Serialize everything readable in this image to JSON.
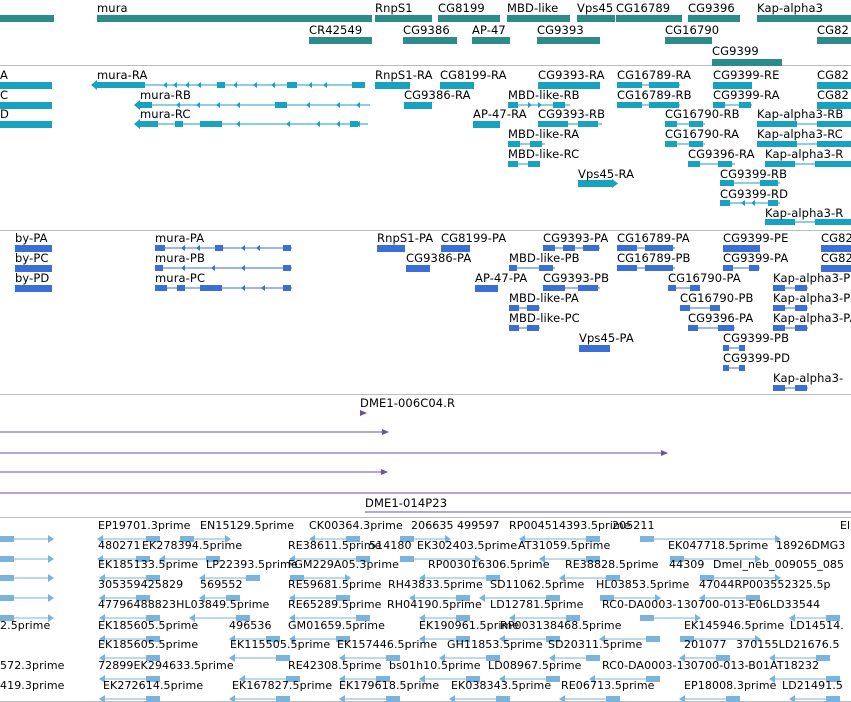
{
  "colors": {
    "gene": "#2e8b8b",
    "transcript": "#17a2c0",
    "cds": "#3a6fd6",
    "clone": "#6b4fa8",
    "est": "#7ab4dc",
    "separator": "#bcbcbc"
  },
  "tracks": [
    {
      "id": "genes",
      "labels": [
        {
          "text": "mura"
        },
        {
          "text": "RnpS1"
        },
        {
          "text": "CG8199"
        },
        {
          "text": "MBD-like"
        },
        {
          "text": "Vps45"
        },
        {
          "text": "CG16789"
        },
        {
          "text": "CG9396"
        },
        {
          "text": "Kap-alpha3"
        },
        {
          "text": "CR42549"
        },
        {
          "text": "CG9386"
        },
        {
          "text": "AP-47"
        },
        {
          "text": "CG9393"
        },
        {
          "text": "CG16790"
        },
        {
          "text": "CG82"
        },
        {
          "text": "CG9399"
        }
      ]
    },
    {
      "id": "transcripts",
      "labels": [
        {
          "text": "A"
        },
        {
          "text": "C"
        },
        {
          "text": "D"
        },
        {
          "text": "mura-RA"
        },
        {
          "text": "mura-RB"
        },
        {
          "text": "mura-RC"
        },
        {
          "text": "RnpS1-RA"
        },
        {
          "text": "CG8199-RA"
        },
        {
          "text": "CG9386-RA"
        },
        {
          "text": "AP-47-RA"
        },
        {
          "text": "MBD-like-RB"
        },
        {
          "text": "MBD-like-RA"
        },
        {
          "text": "MBD-like-RC"
        },
        {
          "text": "CG9393-RA"
        },
        {
          "text": "CG9393-RB"
        },
        {
          "text": "Vps45-RA"
        },
        {
          "text": "CG16789-RA"
        },
        {
          "text": "CG16789-RB"
        },
        {
          "text": "CG16790-RB"
        },
        {
          "text": "CG16790-RA"
        },
        {
          "text": "CG9396-RA"
        },
        {
          "text": "CG9399-RE"
        },
        {
          "text": "CG9399-RA"
        },
        {
          "text": "CG9399-RB"
        },
        {
          "text": "CG9399-RD"
        },
        {
          "text": "Kap-alpha3-RB"
        },
        {
          "text": "Kap-alpha3-RC"
        },
        {
          "text": "Kap-alpha3-R"
        },
        {
          "text": "Kap-alpha3-R"
        },
        {
          "text": "CG82"
        },
        {
          "text": "CG82"
        }
      ]
    },
    {
      "id": "proteins",
      "labels": [
        {
          "text": "by-PA"
        },
        {
          "text": "by-PC"
        },
        {
          "text": "by-PD"
        },
        {
          "text": "mura-PA"
        },
        {
          "text": "mura-PB"
        },
        {
          "text": "mura-PC"
        },
        {
          "text": "RnpS1-PA"
        },
        {
          "text": "CG8199-PA"
        },
        {
          "text": "CG9386-PA"
        },
        {
          "text": "AP-47-PA"
        },
        {
          "text": "MBD-like-PB"
        },
        {
          "text": "MBD-like-PA"
        },
        {
          "text": "MBD-like-PC"
        },
        {
          "text": "CG9393-PA"
        },
        {
          "text": "CG9393-PB"
        },
        {
          "text": "Vps45-PA"
        },
        {
          "text": "CG16789-PA"
        },
        {
          "text": "CG16789-PB"
        },
        {
          "text": "CG16790-PA"
        },
        {
          "text": "CG16790-PB"
        },
        {
          "text": "CG9396-PA"
        },
        {
          "text": "CG9399-PE"
        },
        {
          "text": "CG9399-PA"
        },
        {
          "text": "CG9399-PB"
        },
        {
          "text": "CG9399-PD"
        },
        {
          "text": "Kap-alpha3-PB"
        },
        {
          "text": "Kap-alpha3-PC"
        },
        {
          "text": "Kap-alpha3-PA"
        },
        {
          "text": "Kap-alpha3-"
        },
        {
          "text": "CG82"
        },
        {
          "text": "CG82"
        }
      ]
    },
    {
      "id": "clones",
      "labels": [
        {
          "text": "DME1-006C04.R"
        },
        {
          "text": "DME1-014P23"
        }
      ]
    },
    {
      "id": "ests",
      "labels": [
        {
          "text": "EP19701.3prime"
        },
        {
          "text": "EN15129.5prime"
        },
        {
          "text": "CK00364.3prime"
        },
        {
          "text": "206635"
        },
        {
          "text": "499597"
        },
        {
          "text": "RP004514393.5prime"
        },
        {
          "text": "205211"
        },
        {
          "text": "El"
        },
        {
          "text": "480271"
        },
        {
          "text": "EK278394.5prime"
        },
        {
          "text": "RE38611.5prime"
        },
        {
          "text": "514180"
        },
        {
          "text": "EK302403.5prime"
        },
        {
          "text": "AT31059.5prime"
        },
        {
          "text": "EK047718.5prime"
        },
        {
          "text": "18926DMG3"
        },
        {
          "text": "EK185133.5prime"
        },
        {
          "text": "LP22393.5prime"
        },
        {
          "text": "FGM229A05.3prime"
        },
        {
          "text": "RP003016306.5prime"
        },
        {
          "text": "RE38828.5prime"
        },
        {
          "text": "44309"
        },
        {
          "text": "Dmel_neb_009055_085"
        },
        {
          "text": "305359425829"
        },
        {
          "text": "569552"
        },
        {
          "text": "RE59681.5prime"
        },
        {
          "text": "RH43833.5prime"
        },
        {
          "text": "SD11062.5prime"
        },
        {
          "text": "HL03853.5prime"
        },
        {
          "text": "47044RP003552325.5p"
        },
        {
          "text": "47796488823HL03849.5prime"
        },
        {
          "text": "RE65289.5prime"
        },
        {
          "text": "RH04190.5prime"
        },
        {
          "text": "LD12781.5prime"
        },
        {
          "text": "RC0-DA0003-130700-013-E06LD33544"
        },
        {
          "text": "2.5prime"
        },
        {
          "text": "EK185605.5prime"
        },
        {
          "text": "496536"
        },
        {
          "text": "GM01659.5prime"
        },
        {
          "text": "EK190961.5prime"
        },
        {
          "text": "RP003138468.5prime"
        },
        {
          "text": "EK145946.5prime"
        },
        {
          "text": "LD14514."
        },
        {
          "text": "EK185605.5prime"
        },
        {
          "text": "EK115505.5prime"
        },
        {
          "text": "EK157446.5prime"
        },
        {
          "text": "GH11853.5prime"
        },
        {
          "text": "SD20311.5prime"
        },
        {
          "text": "201077"
        },
        {
          "text": "370155LD21676.5"
        },
        {
          "text": "572.3prime"
        },
        {
          "text": "72899EK294633.5prime"
        },
        {
          "text": "RE42308.5prime"
        },
        {
          "text": "bs01h10.5prime"
        },
        {
          "text": "LD08967.5prime"
        },
        {
          "text": "RC0-DA0003-130700-013-B01AT18232"
        },
        {
          "text": "419.3prime"
        },
        {
          "text": "EK272614.5prime"
        },
        {
          "text": "EK167827.5prime"
        },
        {
          "text": "EK179618.5prime"
        },
        {
          "text": "EK038343.5prime"
        },
        {
          "text": "RE06713.5prime"
        },
        {
          "text": "EP18008.3prime"
        },
        {
          "text": "LD21491.5"
        }
      ]
    }
  ]
}
